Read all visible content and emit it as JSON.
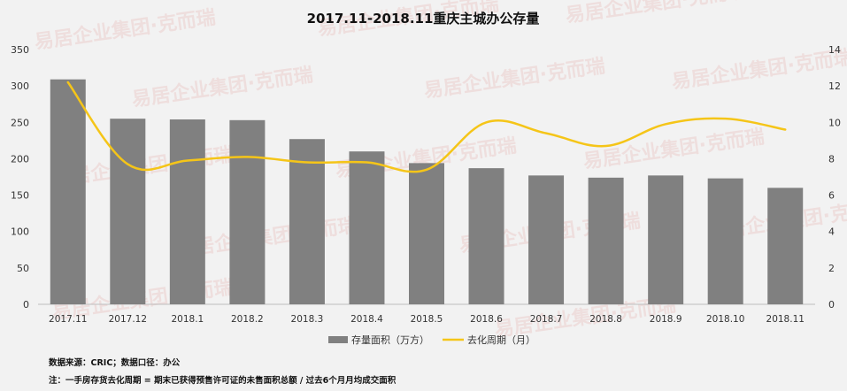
{
  "chart_data": {
    "type": "bar",
    "title": "2017.11-2018.11重庆主城办公存量",
    "categories": [
      "2017.11",
      "2017.12",
      "2018.1",
      "2018.2",
      "2018.3",
      "2018.4",
      "2018.5",
      "2018.6",
      "2018.7",
      "2018.8",
      "2018.9",
      "2018.10",
      "2018.11"
    ],
    "series": [
      {
        "name": "存量面积（万方）",
        "type": "bar",
        "axis": "left",
        "color": "#808080",
        "values": [
          309,
          255,
          254,
          253,
          227,
          210,
          194,
          187,
          177,
          174,
          177,
          173,
          160
        ]
      },
      {
        "name": "去化周期（月）",
        "type": "line",
        "axis": "right",
        "color": "#f5c518",
        "values": [
          12.2,
          7.7,
          7.9,
          8.1,
          7.8,
          7.8,
          7.4,
          10.0,
          9.4,
          8.7,
          9.9,
          10.2,
          9.6
        ]
      }
    ],
    "ylim_left": [
      0,
      350
    ],
    "yticks_left": [
      0,
      50,
      100,
      150,
      200,
      250,
      300,
      350
    ],
    "ylim_right": [
      0,
      14
    ],
    "yticks_right": [
      0,
      2,
      4,
      6,
      8,
      10,
      12,
      14
    ],
    "legend_position": "bottom",
    "grid": false
  },
  "notes": {
    "source": "数据来源：CRIC；数据口径：办公",
    "footnote": "注：一手房存货去化周期 = 期末已获得预售许可证的未售面积总额 / 过去6个月月均成交面积"
  },
  "watermark": {
    "text": "易居企业集团·克而瑞",
    "color": "#d9534f"
  }
}
